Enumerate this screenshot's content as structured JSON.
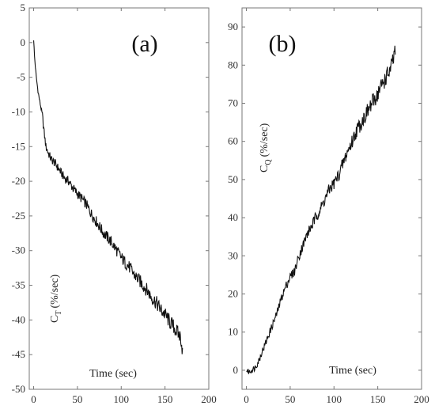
{
  "chart_data": [
    {
      "type": "line",
      "panel_label": "(a)",
      "ylabel": "C",
      "ylabel_sub": "T",
      "ylabel_unit": "(%/sec)",
      "xlabel": "Time (sec)",
      "xlim": [
        -5,
        200
      ],
      "ylim": [
        -50,
        5
      ],
      "xticks": [
        0,
        50,
        100,
        150,
        200
      ],
      "yticks": [
        5,
        0,
        -5,
        -10,
        -15,
        -20,
        -25,
        -30,
        -35,
        -40,
        -45,
        -50
      ],
      "grid": false,
      "series": [
        {
          "x": [
            0,
            1,
            2,
            3,
            5,
            7,
            10,
            12,
            14,
            17,
            20,
            25,
            30,
            35,
            40,
            45,
            50,
            55,
            60,
            65,
            70,
            75,
            80,
            85,
            90,
            95,
            100,
            105,
            110,
            115,
            120,
            125,
            130,
            135,
            140,
            145,
            150,
            155,
            160,
            165,
            168,
            170
          ],
          "y": [
            0.5,
            -2,
            -3.5,
            -5,
            -7,
            -8.5,
            -10.5,
            -13,
            -15,
            -16,
            -16.8,
            -17.5,
            -18.5,
            -19.5,
            -20,
            -21,
            -21.8,
            -22.5,
            -23.3,
            -24.5,
            -25.5,
            -26.5,
            -27.5,
            -28.2,
            -29,
            -30,
            -31,
            -31.8,
            -32.5,
            -33.5,
            -34.2,
            -35,
            -35.8,
            -36.8,
            -37.5,
            -38.5,
            -39.2,
            -40.2,
            -41,
            -42,
            -42.5,
            -44.5
          ]
        }
      ]
    },
    {
      "type": "line",
      "panel_label": "(b)",
      "ylabel": "C",
      "ylabel_sub": "Q",
      "ylabel_unit": "(%/sec)",
      "xlabel": "Time (sec)",
      "xlim": [
        -5,
        200
      ],
      "ylim": [
        -5,
        95
      ],
      "xticks": [
        0,
        50,
        100,
        150,
        200
      ],
      "yticks": [
        0,
        10,
        20,
        30,
        40,
        50,
        60,
        70,
        80,
        90
      ],
      "grid": false,
      "series": [
        {
          "x": [
            0,
            3,
            6,
            9,
            12,
            15,
            18,
            20,
            25,
            30,
            35,
            40,
            45,
            50,
            55,
            60,
            65,
            70,
            75,
            80,
            85,
            90,
            95,
            100,
            105,
            110,
            115,
            120,
            125,
            130,
            135,
            140,
            145,
            150,
            155,
            160,
            165,
            170
          ],
          "y": [
            0,
            -0.5,
            0,
            0.5,
            1.5,
            3,
            5,
            6,
            9,
            12,
            15,
            19,
            22,
            24.5,
            26,
            30,
            33,
            36,
            38,
            40.5,
            42.5,
            45,
            47.5,
            49,
            51,
            54,
            57,
            59.5,
            62.5,
            64.5,
            66.5,
            68.5,
            70.5,
            72.5,
            75,
            77,
            79,
            83.5
          ]
        }
      ]
    }
  ]
}
